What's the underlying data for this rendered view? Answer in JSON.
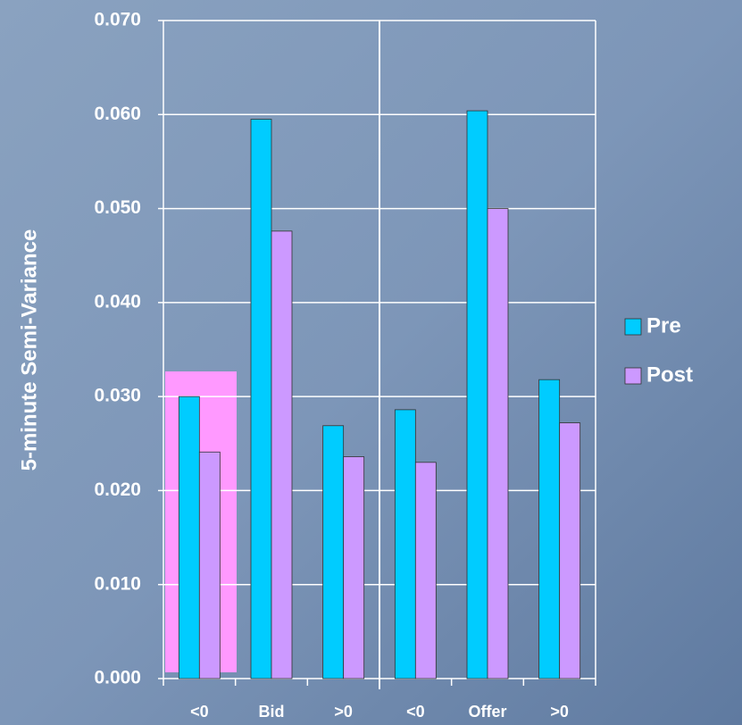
{
  "chart_data": {
    "type": "bar",
    "y_label": "5-minute Semi-Variance",
    "categories": [
      "<0",
      "Bid",
      ">0",
      "<0",
      "Offer",
      ">0"
    ],
    "series": [
      {
        "name": "Pre",
        "color": "#00ccff",
        "values": [
          0.03,
          0.0595,
          0.0269,
          0.0286,
          0.0604,
          0.0318
        ]
      },
      {
        "name": "Post",
        "color": "#cc99ff",
        "values": [
          0.0241,
          0.0476,
          0.0236,
          0.023,
          0.05,
          0.0272
        ]
      }
    ],
    "ylim": [
      0,
      0.07
    ],
    "yticks": [
      {
        "value": 0,
        "label": "0.000"
      },
      {
        "value": 0.01,
        "label": "0.010"
      },
      {
        "value": 0.02,
        "label": "0.020"
      },
      {
        "value": 0.03,
        "label": "0.030"
      },
      {
        "value": 0.04,
        "label": "0.040"
      },
      {
        "value": 0.05,
        "label": "0.050"
      },
      {
        "value": 0.06,
        "label": "0.060"
      },
      {
        "value": 0.07,
        "label": "0.070"
      }
    ],
    "grid": true
  }
}
